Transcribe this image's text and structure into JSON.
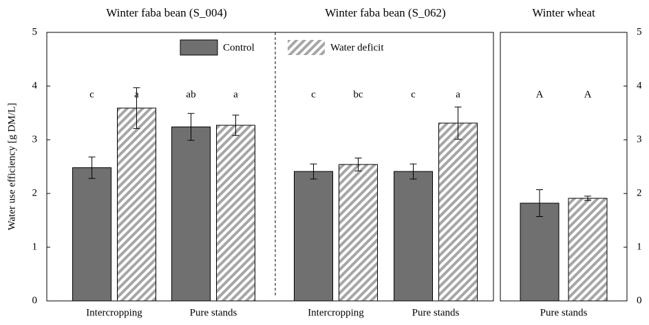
{
  "chart_data": [
    {
      "type": "bar",
      "group_titles": [
        "Winter faba bean (S_004)",
        "Winter faba bean (S_062)"
      ],
      "categories": [
        "Intercropping",
        "Pure stands",
        "Intercropping",
        "Pure stands"
      ],
      "ylabel": "Water use efficiency [g DM/L]",
      "ylim": [
        0,
        5
      ],
      "yticks": [
        0,
        1,
        2,
        3,
        4,
        5
      ],
      "series": [
        {
          "name": "Control",
          "color": "#707070",
          "hatch": false,
          "values": [
            2.48,
            3.24,
            2.41,
            2.41
          ],
          "errors": [
            0.2,
            0.25,
            0.14,
            0.14
          ],
          "annotations": [
            "c",
            "ab",
            "c",
            "c"
          ]
        },
        {
          "name": "Water deficit",
          "color": "#a6a6a6",
          "hatch": true,
          "values": [
            3.59,
            3.27,
            2.54,
            3.31
          ],
          "errors": [
            0.38,
            0.19,
            0.12,
            0.3
          ],
          "annotations": [
            "a",
            "a",
            "bc",
            "a"
          ]
        }
      ]
    },
    {
      "type": "bar",
      "title": "Winter wheat",
      "categories": [
        "Pure stands"
      ],
      "ylim": [
        0,
        5
      ],
      "yticks": [
        0,
        1,
        2,
        3,
        4,
        5
      ],
      "series": [
        {
          "name": "Control",
          "color": "#707070",
          "hatch": false,
          "values": [
            1.82
          ],
          "errors": [
            0.25
          ],
          "annotations": [
            "A"
          ]
        },
        {
          "name": "Water deficit",
          "color": "#a6a6a6",
          "hatch": true,
          "values": [
            1.91
          ],
          "errors": [
            0.04
          ],
          "annotations": [
            "A"
          ]
        }
      ]
    }
  ]
}
